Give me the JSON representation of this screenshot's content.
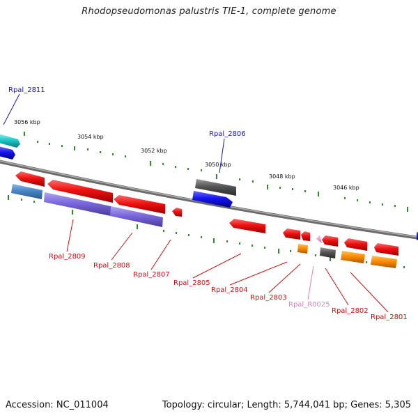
{
  "title": "Rhodopseudomonas palustris TIE-1, complete genome",
  "footer": {
    "accession": "Accession: NC_011004",
    "topology": "Topology: circular; Length: 5,744,041 bp; Genes: 5,305"
  },
  "ticks": [
    {
      "label": "3056 kbp"
    },
    {
      "label": "3054 kbp"
    },
    {
      "label": "3052 kbp"
    },
    {
      "label": "3050 kbp"
    },
    {
      "label": "3048 kbp"
    },
    {
      "label": "3046 kbp"
    }
  ],
  "genes": [
    {
      "label": "Rpal_2811",
      "color": "#1a1aaa"
    },
    {
      "label": "Rpal_2806",
      "color": "#1a1aaa"
    },
    {
      "label": "Rpal_2809",
      "color": "#cc1111"
    },
    {
      "label": "Rpal_2808",
      "color": "#cc1111"
    },
    {
      "label": "Rpal_2807",
      "color": "#cc1111"
    },
    {
      "label": "Rpal_2805",
      "color": "#cc1111"
    },
    {
      "label": "Rpal_2804",
      "color": "#cc1111"
    },
    {
      "label": "Rpal_2803",
      "color": "#cc1111"
    },
    {
      "label": "Rpal_R0025",
      "color": "#e080b8"
    },
    {
      "label": "Rpal_2802",
      "color": "#cc1111"
    },
    {
      "label": "Rpal_2801",
      "color": "#cc1111"
    }
  ],
  "colors": {
    "backbone": "#8a8a8a",
    "tick_mark": "#2e8b2e",
    "cds_red": "#ee1111",
    "cds_blue": "#1515ee",
    "cds_purple": "#7b68dd",
    "cds_steel": "#4a86c8",
    "cds_cyan": "#20c8c8",
    "cds_grey": "#555555",
    "cds_orange": "#ff8c00",
    "rna_pink": "#f0a0d0"
  }
}
